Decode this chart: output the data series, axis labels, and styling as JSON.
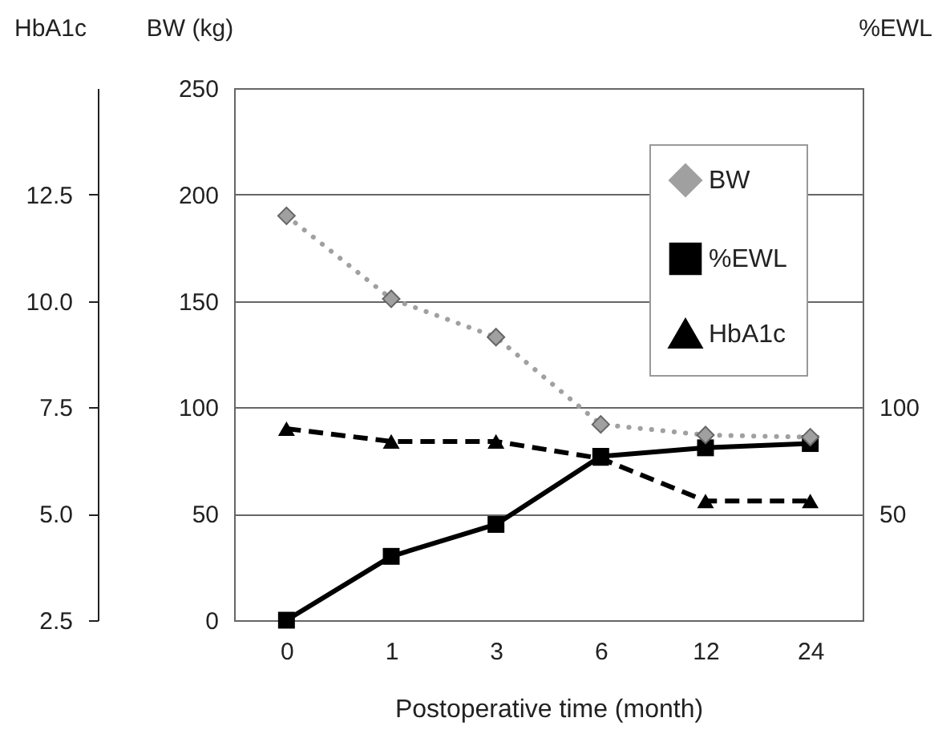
{
  "chart_data": {
    "type": "line",
    "xlabel": "Postoperative time (month)",
    "ylabel": "BW (kg)",
    "y2label": "%EWL",
    "y3label": "HbA1c",
    "categories": [
      "0",
      "1",
      "3",
      "6",
      "12",
      "24"
    ],
    "ylim": [
      0,
      250
    ],
    "yticks": [
      0,
      50,
      100,
      150,
      200,
      250
    ],
    "y2lim": [
      0,
      250
    ],
    "y2ticks": [
      50,
      100
    ],
    "y3lim": [
      2.5,
      15
    ],
    "y3ticks": [
      2.5,
      {
        "value": 5,
        "label": "5.0"
      },
      {
        "value": 7.5,
        "label": "7.5"
      },
      {
        "value": 10,
        "label": "10.0"
      },
      12.5
    ],
    "grid": "y",
    "legend": "top right",
    "series": [
      {
        "name": "BW",
        "color": "#a0a0a0",
        "marker": "diamond",
        "line_style": "dotted",
        "values": [
          190,
          151,
          133,
          92,
          87,
          86
        ]
      },
      {
        "name": "%EWL",
        "color": "#000000",
        "marker": "square",
        "line_style": "solid",
        "axis": "y2",
        "values": [
          0,
          30,
          45,
          77,
          81,
          83
        ]
      },
      {
        "name": "HbA1c",
        "color": "#000000",
        "marker": "triangle",
        "line_style": "dashed",
        "axis": "y3",
        "values": [
          7.0,
          6.7,
          6.7,
          6.3,
          5.3,
          5.3
        ]
      }
    ]
  }
}
